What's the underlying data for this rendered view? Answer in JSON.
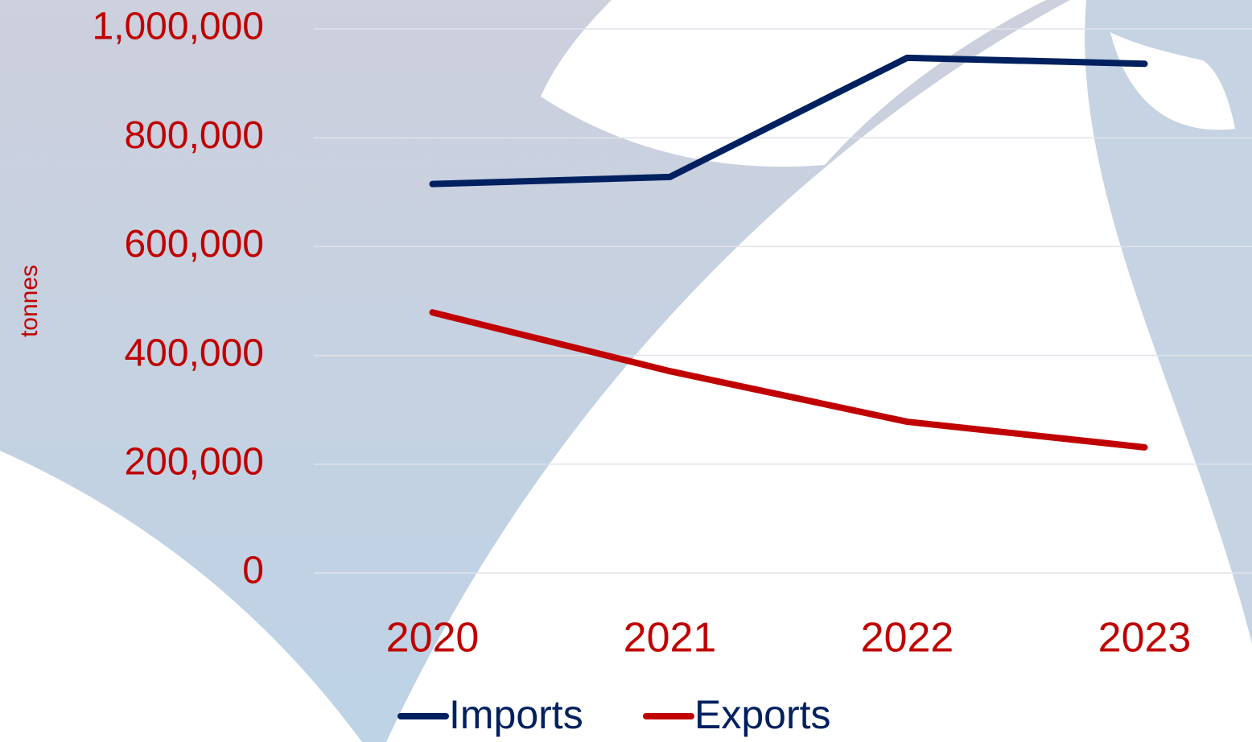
{
  "chart_data": {
    "type": "line",
    "y_label": "tonnes",
    "categories": [
      "2020",
      "2021",
      "2022",
      "2023"
    ],
    "series": [
      {
        "name": "Imports",
        "color": "#002060",
        "values": [
          715000,
          728000,
          947000,
          936000
        ]
      },
      {
        "name": "Exports",
        "color": "#c00000",
        "values": [
          479000,
          371000,
          278000,
          231000
        ]
      }
    ],
    "ylim": [
      0,
      1000000
    ],
    "yticks": [
      0,
      {
        "value": 200000,
        "label": "200,000"
      },
      {
        "value": 400000,
        "label": "400,000"
      },
      {
        "value": 600000,
        "label": "600,000"
      },
      {
        "value": 800000,
        "label": "800,000"
      },
      {
        "value": 1000000,
        "label": "1,000,000"
      }
    ],
    "grid": true,
    "legend": "bottom"
  }
}
